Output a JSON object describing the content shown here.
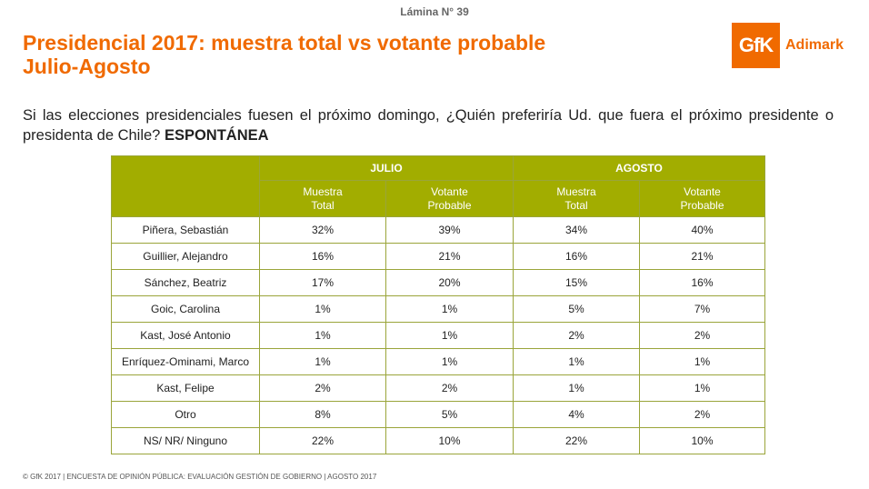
{
  "slide_number": "Lámina N° 39",
  "title": {
    "line1": "Presidencial 2017: muestra total vs votante probable",
    "line2": "Julio-Agosto"
  },
  "logo": {
    "mark": "GfK",
    "text": "Adimark"
  },
  "question": {
    "text": "Si las elecciones presidenciales fuesen el próximo domingo, ¿Quién preferiría Ud. que fuera el próximo presidente o presidenta de Chile?",
    "emphasis": "ESPONTÁNEA"
  },
  "table": {
    "groups": [
      "JULIO",
      "AGOSTO"
    ],
    "subheaders": [
      {
        "line1": "Muestra",
        "line2": "Total"
      },
      {
        "line1": "Votante",
        "line2": "Probable"
      },
      {
        "line1": "Muestra",
        "line2": "Total"
      },
      {
        "line1": "Votante",
        "line2": "Probable"
      }
    ],
    "rows": [
      {
        "name": "Piñera, Sebastián",
        "values": [
          "32%",
          "39%",
          "34%",
          "40%"
        ]
      },
      {
        "name": "Guillier, Alejandro",
        "values": [
          "16%",
          "21%",
          "16%",
          "21%"
        ]
      },
      {
        "name": "Sánchez, Beatriz",
        "values": [
          "17%",
          "20%",
          "15%",
          "16%"
        ]
      },
      {
        "name": "Goic, Carolina",
        "values": [
          "1%",
          "1%",
          "5%",
          "7%"
        ]
      },
      {
        "name": "Kast, José Antonio",
        "values": [
          "1%",
          "1%",
          "2%",
          "2%"
        ]
      },
      {
        "name": "Enríquez-Ominami, Marco",
        "values": [
          "1%",
          "1%",
          "1%",
          "1%"
        ]
      },
      {
        "name": "Kast, Felipe",
        "values": [
          "2%",
          "2%",
          "1%",
          "1%"
        ]
      },
      {
        "name": "Otro",
        "values": [
          "8%",
          "5%",
          "4%",
          "2%"
        ]
      },
      {
        "name": "NS/ NR/ Ninguno",
        "values": [
          "22%",
          "10%",
          "22%",
          "10%"
        ]
      }
    ]
  },
  "footer": "© GfK 2017 | ENCUESTA DE OPINIÓN PÚBLICA: EVALUACIÓN GESTIÓN DE GOBIERNO | AGOSTO 2017"
}
